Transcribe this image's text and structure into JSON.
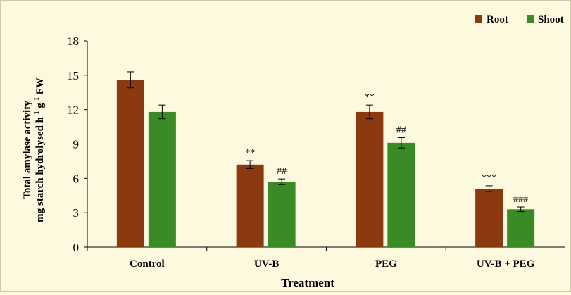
{
  "chart_data": {
    "type": "bar",
    "categories": [
      "Control",
      "UV-B",
      "PEG",
      "UV-B + PEG"
    ],
    "series": [
      {
        "name": "Root",
        "color": "#8b3a0f",
        "values": [
          14.6,
          7.2,
          11.8,
          5.1
        ],
        "errors": [
          0.7,
          0.35,
          0.6,
          0.25
        ],
        "significance": [
          "",
          "**",
          "**",
          "***"
        ]
      },
      {
        "name": "Shoot",
        "color": "#3a8a25",
        "values": [
          11.8,
          5.7,
          9.1,
          3.3
        ],
        "errors": [
          0.6,
          0.25,
          0.45,
          0.2
        ],
        "significance": [
          "",
          "##",
          "##",
          "###"
        ]
      }
    ],
    "xlabel": "Treatment",
    "ylabel_line1": "Total amylase activity",
    "ylabel_line2_main": "mg starch hydrolysed h",
    "ylabel_sup1": "-1",
    "ylabel_mid": " g",
    "ylabel_sup2": "-1",
    "ylabel_end": " FW",
    "ylim": [
      0,
      18
    ],
    "yticks": [
      "0",
      "3",
      "6",
      "9",
      "12",
      "15",
      "18"
    ],
    "legend_position": "top-right",
    "grid": false
  }
}
